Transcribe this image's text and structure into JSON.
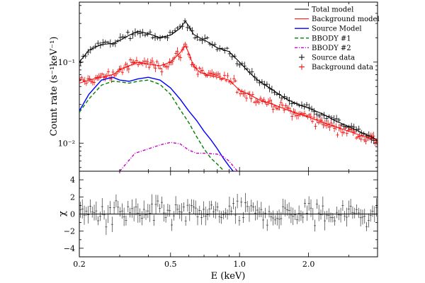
{
  "chart_data": [
    {
      "type": "line",
      "panel": "spectrum",
      "xlabel": "E (keV)",
      "ylabel": "Count rate (s⁻¹keV⁻¹)",
      "x_scale": "log",
      "y_scale": "log",
      "xlim": [
        0.2,
        4.0
      ],
      "ylim": [
        0.0045,
        0.55
      ],
      "xticks": [
        {
          "value": 0.2,
          "label": "0.2"
        },
        {
          "value": 0.5,
          "label": "0.5"
        },
        {
          "value": 1.0,
          "label": "1.0"
        },
        {
          "value": 2.0,
          "label": "2.0"
        }
      ],
      "yticks": [
        {
          "value": 0.1,
          "label": "10⁻¹"
        },
        {
          "value": 0.01,
          "label": "10⁻²"
        }
      ],
      "legend_position": "top-right",
      "legend": [
        {
          "key": "total",
          "label": "Total model",
          "color": "#000000",
          "style": "solid"
        },
        {
          "key": "bkg",
          "label": "Background model",
          "color": "#ff0000",
          "style": "solid"
        },
        {
          "key": "src",
          "label": "Source Model",
          "color": "#0000ff",
          "style": "solid"
        },
        {
          "key": "bb1",
          "label": "BBODY #1",
          "color": "#008000",
          "style": "dashed"
        },
        {
          "key": "bb2",
          "label": "BBODY #2",
          "color": "#cc00cc",
          "style": "dashdot"
        },
        {
          "key": "srcdata",
          "label": "Source data",
          "color": "#000000",
          "style": "cross"
        },
        {
          "key": "bkgdata",
          "label": "Background data",
          "color": "#ff0000",
          "style": "cross"
        }
      ],
      "series": [
        {
          "key": "total",
          "name": "Total model",
          "color": "#000000",
          "x": [
            0.2,
            0.22,
            0.25,
            0.28,
            0.3,
            0.33,
            0.36,
            0.4,
            0.45,
            0.5,
            0.55,
            0.58,
            0.6,
            0.63,
            0.67,
            0.72,
            0.8,
            0.9,
            1.0,
            1.1,
            1.2,
            1.4,
            1.6,
            1.8,
            2.0,
            2.3,
            2.6,
            3.0,
            3.5,
            4.0
          ],
          "y": [
            0.1,
            0.14,
            0.165,
            0.17,
            0.185,
            0.215,
            0.24,
            0.225,
            0.2,
            0.215,
            0.26,
            0.32,
            0.28,
            0.22,
            0.2,
            0.18,
            0.15,
            0.135,
            0.1,
            0.075,
            0.06,
            0.045,
            0.035,
            0.03,
            0.027,
            0.023,
            0.019,
            0.016,
            0.013,
            0.011
          ]
        },
        {
          "key": "bkg",
          "name": "Background model",
          "color": "#ff0000",
          "x": [
            0.2,
            0.22,
            0.25,
            0.28,
            0.3,
            0.33,
            0.36,
            0.4,
            0.45,
            0.5,
            0.55,
            0.58,
            0.6,
            0.63,
            0.67,
            0.72,
            0.8,
            0.9,
            1.0,
            1.1,
            1.2,
            1.4,
            1.6,
            1.8,
            2.0,
            2.3,
            2.6,
            3.0,
            3.5,
            4.0
          ],
          "y": [
            0.055,
            0.06,
            0.065,
            0.07,
            0.08,
            0.09,
            0.1,
            0.095,
            0.09,
            0.1,
            0.13,
            0.16,
            0.13,
            0.09,
            0.075,
            0.07,
            0.065,
            0.06,
            0.045,
            0.04,
            0.035,
            0.03,
            0.026,
            0.023,
            0.021,
            0.018,
            0.016,
            0.014,
            0.012,
            0.011
          ]
        },
        {
          "key": "src",
          "name": "Source Model",
          "color": "#0000ff",
          "x": [
            0.2,
            0.22,
            0.25,
            0.28,
            0.3,
            0.33,
            0.36,
            0.4,
            0.45,
            0.5,
            0.55,
            0.6,
            0.65,
            0.7,
            0.75,
            0.8,
            0.85,
            0.9,
            0.95,
            1.0
          ],
          "y": [
            0.025,
            0.04,
            0.06,
            0.065,
            0.06,
            0.058,
            0.062,
            0.065,
            0.06,
            0.048,
            0.035,
            0.025,
            0.019,
            0.014,
            0.011,
            0.0085,
            0.0065,
            0.0052,
            0.0043,
            0.0036
          ]
        },
        {
          "key": "bb1",
          "name": "BBODY #1",
          "color": "#008000",
          "x": [
            0.2,
            0.22,
            0.25,
            0.28,
            0.3,
            0.33,
            0.36,
            0.4,
            0.45,
            0.5,
            0.55,
            0.6,
            0.65,
            0.7,
            0.75,
            0.8,
            0.85,
            0.88
          ],
          "y": [
            0.024,
            0.035,
            0.052,
            0.058,
            0.057,
            0.055,
            0.058,
            0.06,
            0.053,
            0.04,
            0.026,
            0.018,
            0.012,
            0.0085,
            0.0065,
            0.0055,
            0.0046,
            0.0042
          ]
        },
        {
          "key": "bb2",
          "name": "BBODY #2",
          "color": "#cc00cc",
          "x": [
            0.3,
            0.35,
            0.4,
            0.45,
            0.5,
            0.55,
            0.6,
            0.65,
            0.7,
            0.75,
            0.8,
            0.85,
            0.9,
            0.95,
            1.0
          ],
          "y": [
            0.0045,
            0.0075,
            0.0085,
            0.0095,
            0.0102,
            0.0098,
            0.0082,
            0.0075,
            0.0075,
            0.0074,
            0.0073,
            0.0068,
            0.006,
            0.005,
            0.0042
          ]
        }
      ]
    },
    {
      "type": "scatter",
      "panel": "residuals",
      "xlabel": "E (keV)",
      "ylabel": "χ",
      "x_scale": "log",
      "xlim": [
        0.2,
        4.0
      ],
      "ylim": [
        -5,
        5
      ],
      "yticks": [
        {
          "value": 4,
          "label": "4"
        },
        {
          "value": 2,
          "label": "2"
        },
        {
          "value": 0,
          "label": "0"
        },
        {
          "value": -2,
          "label": "−2"
        },
        {
          "value": -4,
          "label": "−4"
        }
      ],
      "reference_line": 0,
      "color": "#000000"
    }
  ]
}
